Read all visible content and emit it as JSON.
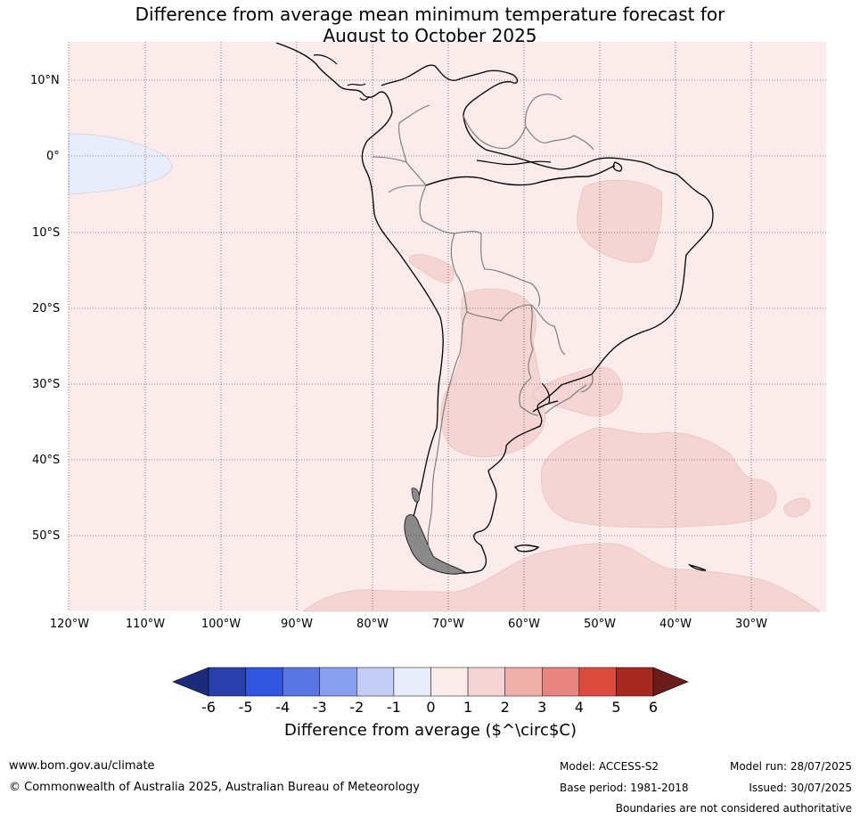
{
  "title": {
    "line1": "Difference from average mean minimum temperature forecast for",
    "line2": "August to October 2025"
  },
  "map": {
    "lat_ticks": [
      "10°N",
      "0°",
      "10°S",
      "20°S",
      "30°S",
      "40°S",
      "50°S"
    ],
    "lon_ticks": [
      "120°W",
      "110°W",
      "100°W",
      "90°W",
      "80°W",
      "70°W",
      "60°W",
      "50°W",
      "40°W",
      "30°W"
    ],
    "background_color": "#fbebea",
    "region_1_2_color": "#f4d5d3",
    "region_neg1_0_color": "#e8ecfb"
  },
  "colorbar": {
    "labels": [
      "-6",
      "-5",
      "-4",
      "-3",
      "-2",
      "-1",
      "0",
      "1",
      "2",
      "3",
      "4",
      "5",
      "6"
    ],
    "colors": [
      "#1e2b7b",
      "#293fab",
      "#3055e0",
      "#5a76e4",
      "#8a9eee",
      "#c2ccf5",
      "#e8ecfb",
      "#fbebea",
      "#f4d5d3",
      "#eeaea9",
      "#e8857e",
      "#dd4b3f",
      "#a72a20",
      "#6b1c19"
    ],
    "title": "Difference from average ($^\\circ$C)"
  },
  "footer": {
    "website": "www.bom.gov.au/climate",
    "copyright": "© Commonwealth of Australia 2025, Australian Bureau of Meteorology",
    "model": "Model: ACCESS-S2",
    "base_period": "Base period: 1981-2018",
    "model_run": "Model run: 28/07/2025",
    "issued": "Issued: 30/07/2025",
    "disclaimer": "Boundaries are not considered authoritative"
  }
}
